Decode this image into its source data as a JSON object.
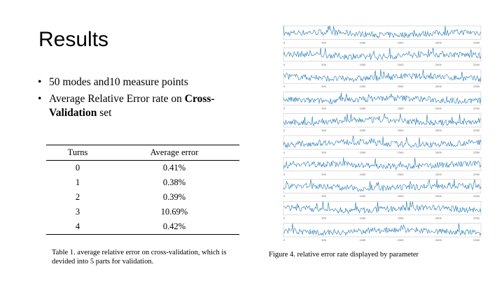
{
  "slide": {
    "title": "Results",
    "bullets": [
      {
        "text": "50 modes and10 measure points"
      },
      {
        "pre": "Average Relative Error rate on ",
        "bold": "Cross-Validation",
        "post": " set"
      }
    ]
  },
  "table": {
    "headers": [
      "Turns",
      "Average error"
    ],
    "rows": [
      {
        "turn": "0",
        "error": "0.41%"
      },
      {
        "turn": "1",
        "error": "0.38%"
      },
      {
        "turn": "2",
        "error": "0.39%"
      },
      {
        "turn": "3",
        "error": "10.69%"
      },
      {
        "turn": "4",
        "error": "0.42%"
      }
    ],
    "caption": "Table 1. average relative error on cross-validation, which is devided into 5 parts for validation."
  },
  "figure": {
    "caption": "Figure 4. relative error rate displayed by parameter",
    "line_color": "#1f77b4",
    "x_ticks": [
      "0",
      "500",
      "1000",
      "1500",
      "2000",
      "2500"
    ],
    "panel_count": 10
  }
}
